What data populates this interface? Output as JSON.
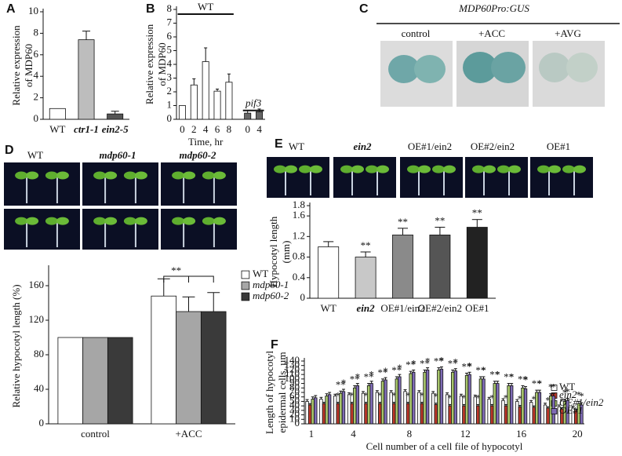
{
  "chart_data": [
    {
      "type": "bar",
      "panel": "A",
      "ylabel": [
        "Relative expression",
        "of MDP60"
      ],
      "categories": [
        "WT",
        "ctr1-1",
        "ein2-5"
      ],
      "series": [
        {
          "colors": [
            "#ffffff",
            "#bdbdbd",
            "#555555"
          ],
          "values": [
            1,
            7.4,
            0.5
          ],
          "errors": [
            0,
            0.8,
            0.25
          ]
        }
      ],
      "ylim": [
        0,
        10
      ],
      "yticks": [
        0,
        2,
        4,
        6,
        8,
        10
      ]
    },
    {
      "type": "bar",
      "panel": "B",
      "ylabel": [
        "Relative expression",
        "of MDP60"
      ],
      "xlabel": "Time, hr",
      "annotations": [
        "WT",
        "pif3"
      ],
      "categories": [
        "0",
        "2",
        "4",
        "6",
        "8",
        "0",
        "4"
      ],
      "series": [
        {
          "colors": [
            "#ffffff",
            "#ffffff",
            "#ffffff",
            "#ffffff",
            "#ffffff",
            "#666666",
            "#666666"
          ],
          "values": [
            1,
            2.5,
            4.2,
            2.05,
            2.7,
            0.45,
            0.55
          ],
          "errors": [
            0,
            0.45,
            1,
            0.15,
            0.6,
            0.2,
            0.2
          ]
        }
      ],
      "ylim": [
        0,
        8
      ],
      "yticks": [
        0,
        1,
        2,
        3,
        4,
        5,
        6,
        7,
        8
      ]
    },
    {
      "type": "bar",
      "ylabel": [
        "Relative hypocotyl length (%)"
      ],
      "annotations": [
        "**"
      ],
      "categories": [
        "control",
        "+ACC"
      ],
      "series": [
        {
          "name": "WT",
          "color": "#ffffff",
          "values": [
            100,
            148
          ],
          "errors": [
            0,
            20
          ]
        },
        {
          "name": "mdp60-1",
          "color": "#a6a6a6",
          "values": [
            100,
            130
          ],
          "errors": [
            0,
            17
          ]
        },
        {
          "name": "mdp60-2",
          "color": "#3a3a3a",
          "values": [
            100,
            130
          ],
          "errors": [
            0,
            22
          ]
        }
      ],
      "ylim": [
        0,
        180
      ],
      "yticks": [
        0,
        40,
        80,
        120,
        160
      ]
    },
    {
      "type": "bar",
      "ylabel": [
        "Hypocotyl length",
        "(mm)"
      ],
      "categories": [
        "WT",
        "ein2",
        "OE#1/ein2",
        "OE#2/ein2",
        "OE#1"
      ],
      "series": [
        {
          "colors": [
            "#ffffff",
            "#c8c8c8",
            "#8a8a8a",
            "#555555",
            "#222222"
          ],
          "values": [
            1.0,
            0.8,
            1.23,
            1.23,
            1.38
          ],
          "errors": [
            0.1,
            0.1,
            0.13,
            0.15,
            0.15
          ],
          "marks": [
            null,
            "**",
            "**",
            "**",
            "**"
          ]
        }
      ],
      "ylim": [
        0,
        1.8
      ],
      "yticks": [
        0,
        0.4,
        0.8,
        1.2,
        1.6,
        1.8
      ]
    },
    {
      "type": "bar",
      "panel": "F",
      "ylabel": [
        "Length of hypocotyl",
        "epidermal cells, µm"
      ],
      "xlabel": "Cell number of a cell file of hypocotyl",
      "categories": [
        "1",
        null,
        null,
        "4",
        null,
        null,
        null,
        "8",
        null,
        null,
        null,
        "12",
        null,
        null,
        null,
        "16",
        null,
        null,
        null,
        "20"
      ],
      "series": [
        {
          "name": "WT",
          "color": "#ffffff",
          "values": [
            50,
            55,
            62,
            65,
            68,
            70,
            70,
            72,
            70,
            68,
            65,
            62,
            60,
            55,
            52,
            50,
            48,
            42,
            38,
            35
          ],
          "errors": [
            4,
            4,
            4,
            4,
            4,
            4,
            4,
            4,
            4,
            4,
            4,
            4,
            4,
            4,
            4,
            4,
            4,
            4,
            4,
            4
          ]
        },
        {
          "name": "ein2",
          "color": "#c0392b",
          "values": [
            42,
            45,
            45,
            45,
            45,
            45,
            45,
            45,
            45,
            43,
            40,
            40,
            40,
            40,
            40,
            38,
            37,
            35,
            33,
            30
          ],
          "errors": [
            3,
            3,
            3,
            3,
            3,
            3,
            3,
            3,
            3,
            3,
            3,
            3,
            3,
            3,
            3,
            3,
            3,
            3,
            3,
            3
          ],
          "marks": [
            null,
            null,
            "*",
            "*",
            "*",
            "*",
            "*",
            "*",
            "*",
            "*",
            "*",
            "*",
            "*",
            "*",
            "*",
            "*",
            "*",
            "*",
            "*",
            null
          ]
        },
        {
          "name": "OE#1/ein2",
          "color": "#a8c66c",
          "values": [
            55,
            62,
            68,
            80,
            85,
            95,
            100,
            112,
            115,
            120,
            115,
            108,
            100,
            90,
            85,
            80,
            70,
            62,
            50,
            45
          ],
          "errors": [
            5,
            5,
            5,
            5,
            5,
            5,
            5,
            5,
            5,
            5,
            5,
            5,
            5,
            5,
            5,
            5,
            5,
            5,
            5,
            5
          ],
          "marks": [
            null,
            null,
            "**",
            "**",
            "**",
            "**",
            "**",
            "**",
            "**",
            "**",
            "**",
            "**",
            "**",
            "**",
            "**",
            "**",
            "**",
            "*",
            "*",
            "*"
          ]
        },
        {
          "name": "OE#1",
          "color": "#7e6bb5",
          "values": [
            58,
            65,
            72,
            85,
            90,
            98,
            105,
            115,
            120,
            122,
            118,
            110,
            100,
            90,
            85,
            78,
            70,
            62,
            52,
            42
          ],
          "errors": [
            5,
            5,
            5,
            5,
            5,
            5,
            5,
            5,
            5,
            5,
            5,
            5,
            5,
            5,
            5,
            5,
            5,
            5,
            5,
            5
          ],
          "marks": [
            null,
            null,
            "*",
            "*",
            "*",
            "*",
            "*",
            "*",
            "*",
            "*",
            "*",
            "*",
            "*",
            "*",
            "*",
            "*",
            "*",
            "*",
            "*",
            "*"
          ]
        }
      ],
      "ylim": [
        0,
        140
      ],
      "yticks": [
        0,
        10,
        20,
        30,
        40,
        50,
        60,
        70,
        80,
        90,
        100,
        110,
        120,
        130,
        140
      ]
    }
  ],
  "photo_panels": [
    {
      "panel": "C",
      "title": "MDP60Pro:GUS",
      "labels": [
        "control",
        "+ACC",
        "+AVG"
      ]
    },
    {
      "panel": "D",
      "labels": [
        "WT",
        "mdp60-1",
        "mdp60-2"
      ]
    },
    {
      "panel": "E",
      "labels": [
        "WT",
        "ein2",
        "OE#1/ein2",
        "OE#2/ein2",
        "OE#1"
      ]
    }
  ]
}
